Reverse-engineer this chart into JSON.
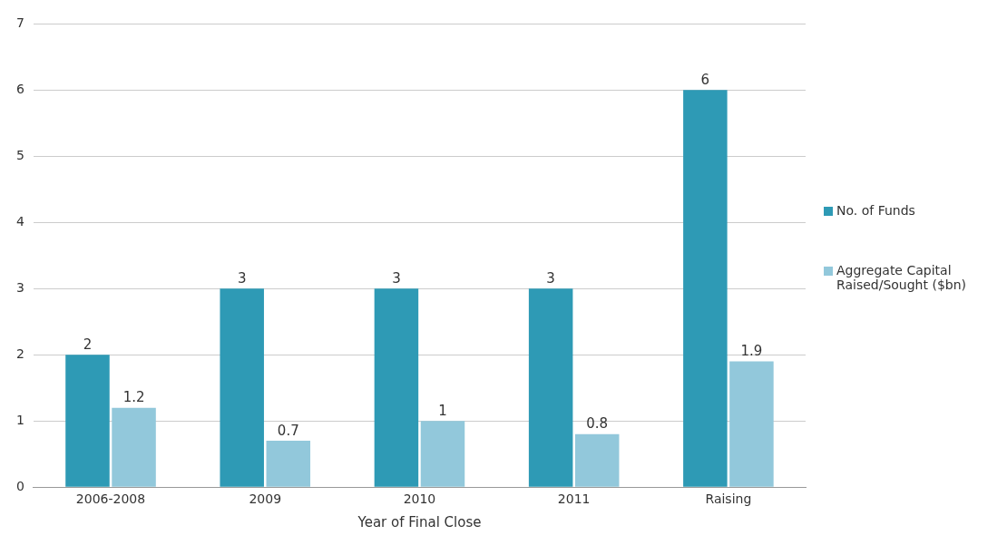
{
  "chart_data": {
    "type": "bar",
    "xlabel": "Year of Final Close",
    "categories": [
      "2006-2008",
      "2009",
      "2010",
      "2011",
      "Raising"
    ],
    "series": [
      {
        "name": "No. of Funds",
        "color": "#2e9ab5",
        "values": [
          2,
          3,
          3,
          3,
          6
        ]
      },
      {
        "name": "Aggregate Capital Raised/Sought ($bn)",
        "color": "#92c8db",
        "values": [
          1.2,
          0.7,
          1,
          0.8,
          1.9
        ]
      }
    ],
    "ylim": [
      0,
      7
    ],
    "yticks": [
      0,
      1,
      2,
      3,
      4,
      5,
      6,
      7
    ],
    "grid": "y",
    "legend": "right",
    "data_labels": true
  }
}
